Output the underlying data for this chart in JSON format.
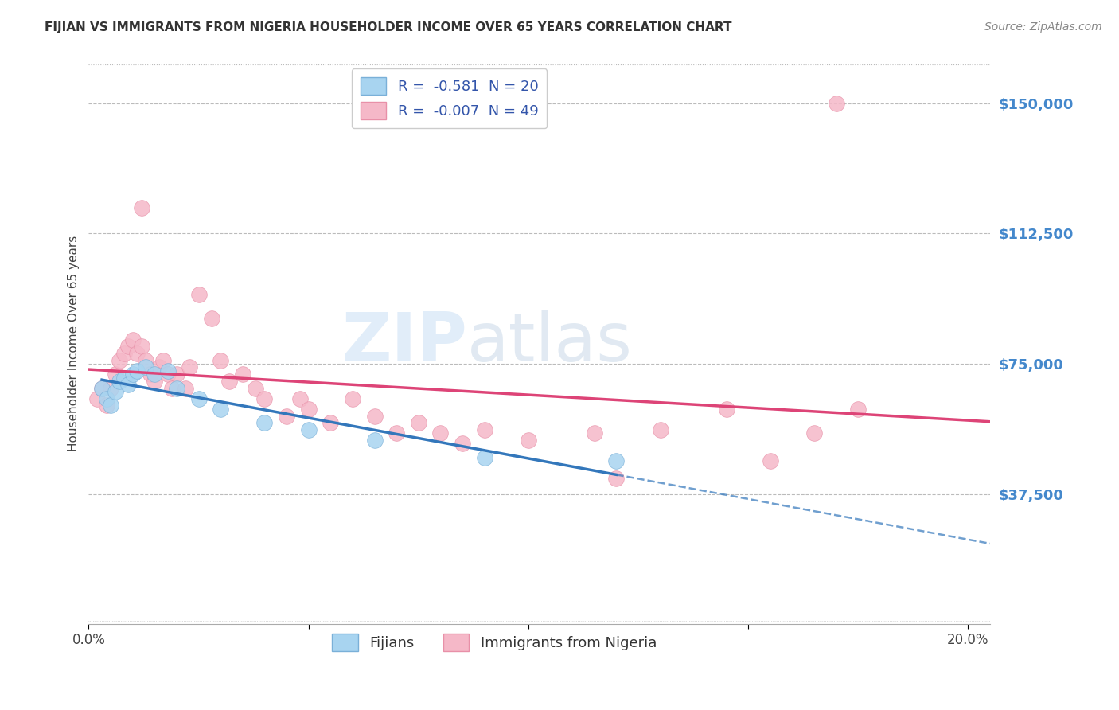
{
  "title": "FIJIAN VS IMMIGRANTS FROM NIGERIA HOUSEHOLDER INCOME OVER 65 YEARS CORRELATION CHART",
  "source": "Source: ZipAtlas.com",
  "ylabel": "Householder Income Over 65 years",
  "yticks": [
    0,
    37500,
    75000,
    112500,
    150000
  ],
  "ytick_labels": [
    "",
    "$37,500",
    "$75,000",
    "$112,500",
    "$150,000"
  ],
  "xticks": [
    0.0,
    0.05,
    0.1,
    0.15,
    0.2
  ],
  "xtick_labels": [
    "0.0%",
    "",
    "",
    "",
    "20.0%"
  ],
  "xlim": [
    0,
    0.205
  ],
  "ylim": [
    0,
    162000
  ],
  "fijian_color": "#a8d4f0",
  "nigeria_color": "#f5b8c8",
  "fijian_edge": "#7ab0d8",
  "nigeria_edge": "#e890a8",
  "fijian_R": "-0.581",
  "fijian_N": "20",
  "nigeria_R": "-0.007",
  "nigeria_N": "49",
  "fijian_scatter": [
    [
      0.003,
      68000
    ],
    [
      0.004,
      65000
    ],
    [
      0.005,
      63000
    ],
    [
      0.006,
      67000
    ],
    [
      0.007,
      70000
    ],
    [
      0.008,
      71000
    ],
    [
      0.009,
      69000
    ],
    [
      0.01,
      72000
    ],
    [
      0.011,
      73000
    ],
    [
      0.013,
      74000
    ],
    [
      0.015,
      72000
    ],
    [
      0.018,
      73000
    ],
    [
      0.02,
      68000
    ],
    [
      0.025,
      65000
    ],
    [
      0.03,
      62000
    ],
    [
      0.04,
      58000
    ],
    [
      0.05,
      56000
    ],
    [
      0.065,
      53000
    ],
    [
      0.09,
      48000
    ],
    [
      0.12,
      47000
    ]
  ],
  "nigeria_scatter": [
    [
      0.002,
      65000
    ],
    [
      0.003,
      68000
    ],
    [
      0.004,
      63000
    ],
    [
      0.005,
      68000
    ],
    [
      0.006,
      72000
    ],
    [
      0.007,
      76000
    ],
    [
      0.008,
      78000
    ],
    [
      0.009,
      80000
    ],
    [
      0.01,
      82000
    ],
    [
      0.011,
      78000
    ],
    [
      0.012,
      80000
    ],
    [
      0.013,
      76000
    ],
    [
      0.014,
      72000
    ],
    [
      0.015,
      70000
    ],
    [
      0.016,
      74000
    ],
    [
      0.017,
      76000
    ],
    [
      0.018,
      72000
    ],
    [
      0.019,
      68000
    ],
    [
      0.02,
      72000
    ],
    [
      0.022,
      68000
    ],
    [
      0.023,
      74000
    ],
    [
      0.025,
      95000
    ],
    [
      0.028,
      88000
    ],
    [
      0.03,
      76000
    ],
    [
      0.032,
      70000
    ],
    [
      0.035,
      72000
    ],
    [
      0.038,
      68000
    ],
    [
      0.04,
      65000
    ],
    [
      0.045,
      60000
    ],
    [
      0.048,
      65000
    ],
    [
      0.05,
      62000
    ],
    [
      0.055,
      58000
    ],
    [
      0.06,
      65000
    ],
    [
      0.065,
      60000
    ],
    [
      0.07,
      55000
    ],
    [
      0.075,
      58000
    ],
    [
      0.08,
      55000
    ],
    [
      0.085,
      52000
    ],
    [
      0.09,
      56000
    ],
    [
      0.1,
      53000
    ],
    [
      0.115,
      55000
    ],
    [
      0.12,
      42000
    ],
    [
      0.13,
      56000
    ],
    [
      0.145,
      62000
    ],
    [
      0.155,
      47000
    ],
    [
      0.165,
      55000
    ],
    [
      0.17,
      150000
    ],
    [
      0.175,
      62000
    ],
    [
      0.012,
      120000
    ]
  ],
  "fijian_line_color": "#3377bb",
  "fijian_line_solid": "#3377bb",
  "nigeria_line_color": "#dd4477",
  "watermark_zip": "ZIP",
  "watermark_atlas": "atlas",
  "background_color": "#ffffff",
  "grid_color": "#bbbbbb",
  "legend_text_color": "#3355aa",
  "title_color": "#333333",
  "ytick_color": "#4488cc",
  "source_color": "#888888"
}
